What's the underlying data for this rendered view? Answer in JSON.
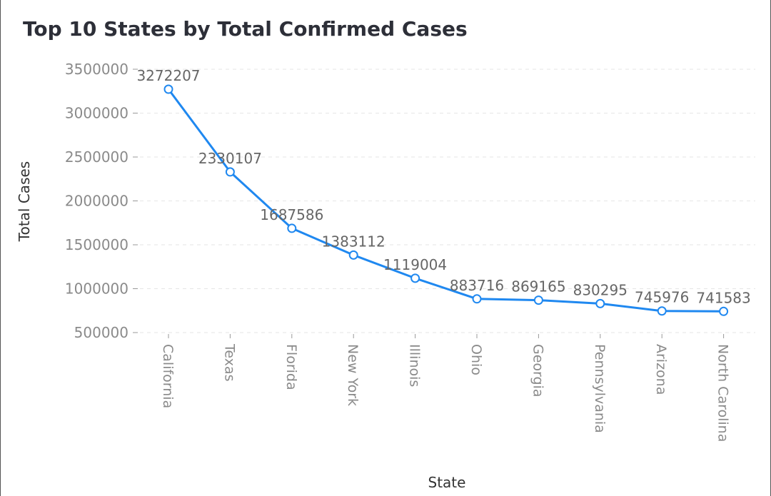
{
  "chart_data": {
    "type": "line",
    "title": "Top 10 States by Total Confirmed Cases",
    "xlabel": "State",
    "ylabel": "Total Cases",
    "categories": [
      "California",
      "Texas",
      "Florida",
      "New York",
      "Illinois",
      "Ohio",
      "Georgia",
      "Pennsylvania",
      "Arizona",
      "North Carolina"
    ],
    "values": [
      3272207,
      2330107,
      1687586,
      1383112,
      1119004,
      883716,
      869165,
      830295,
      745976,
      741583
    ],
    "data_labels": [
      "3272207",
      "2330107",
      "1687586",
      "1383112",
      "1119004",
      "883716",
      "869165",
      "830295",
      "745976",
      "741583"
    ],
    "ylim": [
      500000,
      3500000
    ],
    "yticks": [
      500000,
      1000000,
      1500000,
      2000000,
      2500000,
      3000000,
      3500000
    ],
    "ytick_labels": [
      "500000",
      "1000000",
      "1500000",
      "2000000",
      "2500000",
      "3000000",
      "3500000"
    ],
    "grid": "horizontal dashed",
    "colors": {
      "line": "#1f88f0",
      "marker_fill": "#ffffff",
      "grid": "#e6e6e6",
      "title": "#2d2f38"
    }
  }
}
